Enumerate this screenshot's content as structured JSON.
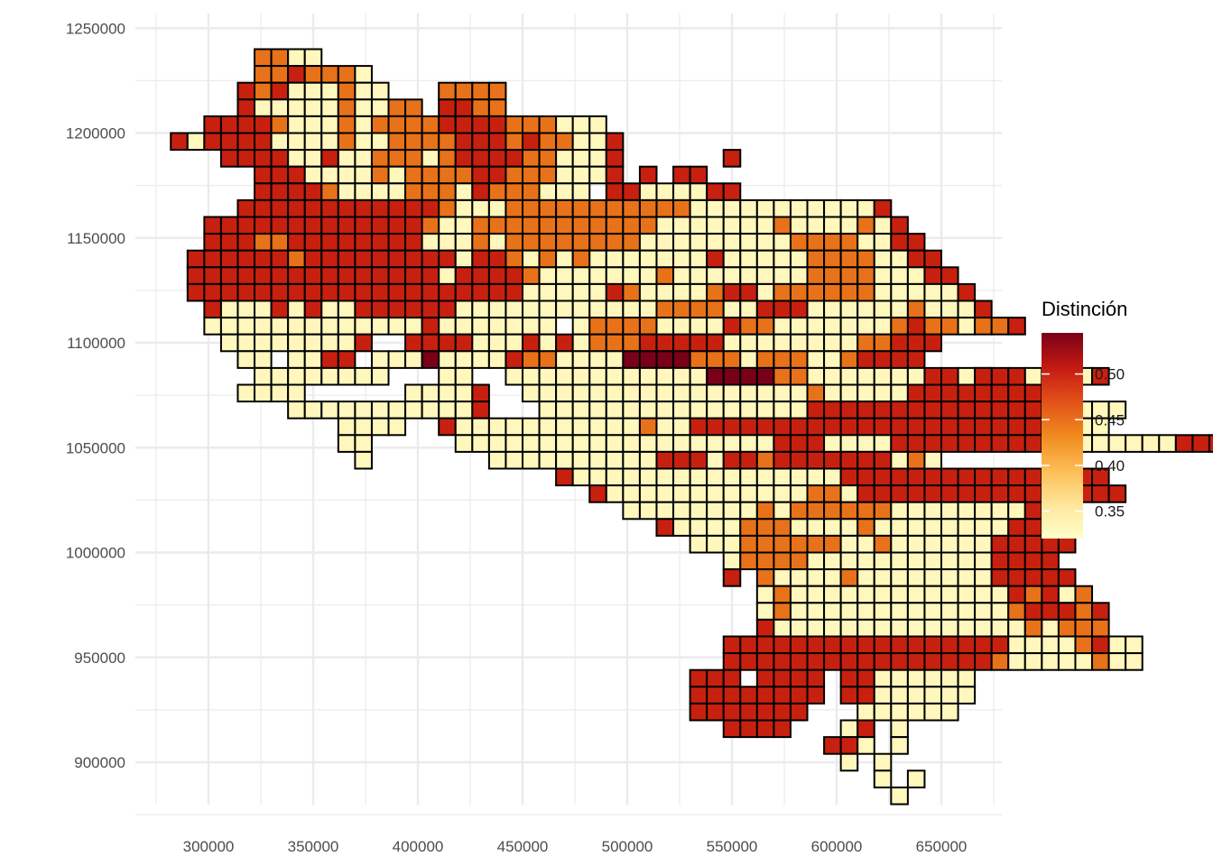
{
  "chart_data": {
    "type": "heatmap",
    "title": "",
    "xlabel": "",
    "ylabel": "",
    "x_ticks": [
      "300000",
      "350000",
      "400000",
      "450000",
      "500000",
      "550000",
      "600000",
      "650000"
    ],
    "y_ticks": [
      "900000",
      "950000",
      "1000000",
      "1050000",
      "1100000",
      "1150000",
      "1200000",
      "1250000"
    ],
    "xlim": [
      280000,
      680000
    ],
    "ylim": [
      885000,
      1252000
    ],
    "grid": true,
    "cell_size": 8000,
    "legend": {
      "title": "Distinción",
      "position": "right",
      "labels": [
        "0.35",
        "0.40",
        "0.45",
        "0.50"
      ],
      "min": 0.32,
      "max": 0.545
    },
    "colors": {
      "v1": "#fff7bc",
      "v2": "#fee7a2",
      "v3": "#e8721a",
      "v4": "#c8200e",
      "v5": "#7a0018",
      "grid": "#ebebeb",
      "cell_border": "#000000"
    },
    "color_scale": {
      "v1": 0.33,
      "v2": 0.35,
      "v3": 0.45,
      "v4": 0.5,
      "v5": 0.54
    },
    "cells": [
      {
        "y": 1236000,
        "segs": [
          [
            326000,
            4,
            "v3,v3,v1,v1"
          ]
        ]
      },
      {
        "y": 1228000,
        "segs": [
          [
            326000,
            4,
            "v3,v3,v4,v3"
          ],
          [
            350000,
            4,
            "v3,v3,v3,v1"
          ]
        ]
      },
      {
        "y": 1220000,
        "segs": [
          [
            318000,
            3,
            "v4,v3,v4"
          ],
          [
            342000,
            6,
            "v1,v1,v1,v3,v1,v1"
          ],
          [
            414000,
            4,
            "v3,v3,v3,v3"
          ]
        ]
      },
      {
        "y": 1212000,
        "segs": [
          [
            318000,
            3,
            "v4,v1,v1"
          ],
          [
            342000,
            8,
            "v1,v1,v1,v3,v1,v1,v3,v3"
          ],
          [
            414000,
            4,
            "v4,v4,v3,v3"
          ]
        ]
      },
      {
        "y": 1204000,
        "segs": [
          [
            302000,
            24,
            "v4,v4,v4,v4,v3,v1,v1,v1,v3,v1,v3,v3,v3,v3,v4,v4,v4,v4,v3,v3,v3,v1,v1,v1"
          ]
        ]
      },
      {
        "y": 1196000,
        "segs": [
          [
            286000,
            27,
            "v4,v1,v4,v4,v4,v4,v1,v1,v1,v1,v3,v1,v1,v3,v3,v3,v3,v4,v4,v4,v3,v4,v3,v3,v1,v1,v4"
          ]
        ]
      },
      {
        "y": 1188000,
        "segs": [
          [
            310000,
            24,
            "v4,v4,v4,v4,v1,v1,v4,v1,v1,v3,v3,v3,v1,v3,v4,v4,v4,v4,v3,v3,v1,v1,v1,v4"
          ],
          [
            550000,
            1,
            "v4"
          ]
        ]
      },
      {
        "y": 1180000,
        "segs": [
          [
            326000,
            22,
            "v4,v4,v4,v1,v1,v1,v1,v3,v1,v3,v3,v3,v3,v4,v4,v3,v3,v3,v1,v1,v1,v4"
          ],
          [
            510000,
            1,
            "v4"
          ],
          [
            526000,
            2,
            "v4,v4"
          ]
        ]
      },
      {
        "y": 1172000,
        "segs": [
          [
            326000,
            20,
            "v4,v4,v4,v4,v3,v1,v1,v1,v1,v3,v3,v3,v1,v4,v3,v3,v3,v1,v1,v1"
          ],
          [
            494000,
            5,
            "v4,v4,v1,v1,v1"
          ],
          [
            534000,
            3,
            "v1,v4,v4"
          ]
        ]
      },
      {
        "y": 1164000,
        "segs": [
          [
            318000,
            39,
            "v4,v4,v4,v4,v4,v4,v4,v4,v4,v4,v4,v4,v3,v1,v1,v1,v3,v3,v3,v3,v3,v3,v3,v3,v3,v3,v3,v1,v1,v1,v1,v1,v1,v1,v1,v1,v1,v1,v4"
          ]
        ]
      },
      {
        "y": 1156000,
        "segs": [
          [
            302000,
            42,
            "v4,v4,v4,v4,v4,v4,v4,v4,v4,v4,v4,v4,v4,v3,v1,v1,v3,v3,v3,v3,v3,v3,v3,v3,v3,v3,v3,v1,v1,v1,v1,v1,v1,v1,v3,v1,v1,v1,v1,v3,v1,v4"
          ]
        ]
      },
      {
        "y": 1148000,
        "segs": [
          [
            302000,
            43,
            "v4,v4,v4,v3,v3,v4,v4,v4,v4,v4,v4,v4,v4,v1,v1,v1,v3,v1,v3,v3,v3,v3,v3,v3,v3,v3,v1,v1,v1,v1,v1,v1,v1,v1,v1,v3,v3,v3,v3,v1,v1,v4,v4"
          ]
        ]
      },
      {
        "y": 1140000,
        "segs": [
          [
            294000,
            45,
            "v4,v4,v4,v4,v4,v4,v3,v4,v4,v4,v4,v4,v4,v4,v4,v4,v1,v4,v4,v3,v1,v3,v1,v3,v1,v1,v1,v1,v1,v1,v1,v4,v1,v1,v1,v1,v1,v3,v3,v3,v3,v1,v1,v4,v4"
          ]
        ]
      },
      {
        "y": 1132000,
        "segs": [
          [
            294000,
            46,
            "v4,v4,v4,v4,v4,v4,v4,v4,v4,v4,v4,v4,v4,v4,v4,v1,v4,v4,v4,v4,v3,v1,v1,v1,v1,v1,v1,v1,v3,v1,v1,v1,v1,v1,v1,v1,v1,v3,v3,v3,v3,v1,v1,v1,v4,v4"
          ]
        ]
      },
      {
        "y": 1124000,
        "segs": [
          [
            294000,
            47,
            "v4,v4,v4,v4,v4,v4,v4,v4,v4,v4,v4,v4,v4,v4,v4,v4,v4,v4,v4,v4,v1,v1,v1,v1,v1,v4,v3,v1,v1,v1,v1,v3,v4,v4,v1,v3,v3,v3,v3,v3,v3,v1,v1,v1,v1,v1,v4"
          ]
        ]
      },
      {
        "y": 1116000,
        "segs": [
          [
            302000,
            47,
            "v4,v1,v1,v1,v4,v1,v4,v1,v1,v4,v4,v4,v4,v4,v4,v1,v1,v1,v1,v1,v1,v1,v1,v1,v1,v1,v1,v3,v3,v3,v3,v1,v1,v4,v4,v4,v1,v1,v1,v1,v1,v1,v3,v1,v1,v1,v4"
          ]
        ]
      },
      {
        "y": 1108000,
        "segs": [
          [
            302000,
            21,
            "v1,v1,v1,v1,v1,v1,v1,v1,v1,v1,v1,v1,v1,v4,v1,v1,v1,v1,v1,v1,v1"
          ],
          [
            478000,
            27,
            "v1,v3,v3,v3,v3,v1,v1,v1,v1,v4,v3,v3,v1,v1,v1,v1,v1,v1,v1,v3,v4,v3,v3,v1,v3,v3,v4"
          ]
        ]
      },
      {
        "y": 1100000,
        "segs": [
          [
            310000,
            9,
            "v1,v1,v1,v1,v1,v1,v1,v1,v4"
          ],
          [
            398000,
            30,
            "v4,v4,v4,v4,v1,v1,v1,v4,v1,v4,v1,v3,v3,v3,v4,v4,v4,v4,v4,v1,v1,v1,v1,v1,v1,v1,v1,v3,v3,v4"
          ],
          [
            638000,
            2,
            "v4,v4"
          ]
        ]
      },
      {
        "y": 1092000,
        "segs": [
          [
            318000,
            2,
            "v1,v1"
          ],
          [
            342000,
            4,
            "v1,v1,v4,v4"
          ],
          [
            382000,
            31,
            "v1,v1,v1,v5,v1,v1,v1,v1,v4,v3,v3,v1,v1,v1,v1,v5,v5,v5,v5,v3,v3,v3,v1,v3,v3,v3,v1,v1,v3,v4,v4"
          ],
          [
            630000,
            2,
            "v4,v4"
          ]
        ]
      },
      {
        "y": 1084000,
        "segs": [
          [
            326000,
            8,
            "v1,v1,v1,v1,v1,v1,v1,v1"
          ],
          [
            414000,
            2,
            "v1,v1"
          ],
          [
            446000,
            36,
            "v1,v1,v1,v1,v1,v1,v1,v1,v1,v1,v1,v1,v5,v5,v5,v5,v3,v3,v1,v1,v1,v1,v1,v1,v1,v4,v4,v1,v1,v4,v4,v1,v1,v4,v1,v4"
          ],
          [
            670000,
            1,
            "v4"
          ]
        ]
      },
      {
        "y": 1076000,
        "segs": [
          [
            318000,
            4,
            "v1,v1,v1,v1"
          ],
          [
            398000,
            5,
            "v1,v1,v1,v1,v4"
          ],
          [
            454000,
            32,
            "v1,v1,v1,v1,v1,v1,v1,v1,v1,v1,v1,v1,v1,v1,v1,v1,v1,v3,v1,v1,v1,v1,v1,v4,v4,v4,v4,v4,v4,v4,v4,v1"
          ]
        ]
      },
      {
        "y": 1068000,
        "segs": [
          [
            342000,
            12,
            "v1,v1,v1,v1,v1,v1,v1,v1,v1,v1,v1,v4"
          ],
          [
            462000,
            35,
            "v1,v1,v1,v1,v1,v1,v1,v1,v1,v1,v1,v1,v1,v1,v1,v1,v4,v4,v4,v4,v4,v4,v4,v4,v4,v4,v4,v4,v4,v4,v4,v4,v1,v1,v1"
          ]
        ]
      },
      {
        "y": 1060000,
        "segs": [
          [
            366000,
            4,
            "v1,v1,v1,v1"
          ],
          [
            414000,
            40,
            "v4,v1,v1,v1,v1,v1,v1,v1,v1,v1,v1,v1,v3,v1,v1,v4,v4,v4,v4,v4,v4,v4,v4,v4,v4,v4,v4,v4,v4,v4,v4,v4,v4,v4,v4,v4,v4,v1,v1,v1"
          ]
        ]
      },
      {
        "y": 1052000,
        "segs": [
          [
            366000,
            2,
            "v1,v1"
          ],
          [
            422000,
            46,
            "v1,v1,v1,v1,v1,v1,v1,v1,v1,v1,v1,v1,v1,v1,v1,v1,v1,v1,v1,v4,v4,v4,v1,v1,v1,v1,v4,v4,v4,v4,v4,v4,v4,v4,v4,v4,v4,v1,v1,v1,v1,v1,v1,v4,v4,v4"
          ]
        ]
      },
      {
        "y": 1044000,
        "segs": [
          [
            374000,
            1,
            "v1"
          ],
          [
            438000,
            22,
            "v1,v1,v1,v1,v1,v1,v1,v1,v1,v1,v4,v4,v4,v1,v4,v4,v3,v4,v4,v4,v4,v4"
          ],
          [
            606000,
            3,
            "v4,v4,v1"
          ],
          [
            622000,
            4,
            "v4,v1,v3,v1"
          ]
        ]
      },
      {
        "y": 1036000,
        "segs": [
          [
            470000,
            33,
            "v4,v1,v1,v1,v1,v1,v1,v1,v1,v1,v1,v1,v1,v1,v1,v1,v1,v4,v4,v4,v4,v4,v4,v4,v4,v4,v4,v4,v4,v4,v4,v4,v4"
          ]
        ]
      },
      {
        "y": 1028000,
        "segs": [
          [
            486000,
            32,
            "v4,v1,v1,v1,v1,v1,v1,v1,v1,v1,v1,v1,v1,v3,v3,v1,v4,v4,v4,v4,v4,v4,v4,v4,v4,v4,v4,v4,v4,v4,v4,v4"
          ]
        ]
      },
      {
        "y": 1020000,
        "segs": [
          [
            502000,
            27,
            "v1,v1,v1,v1,v1,v1,v1,v1,v3,v1,v3,v3,v3,v3,v3,v3,v1,v1,v1,v1,v1,v1,v1,v1,v4,v4,v4"
          ]
        ]
      },
      {
        "y": 1012000,
        "segs": [
          [
            518000,
            25,
            "v4,v1,v1,v1,v1,v3,v3,v3,v1,v1,v1,v1,v3,v1,v1,v1,v1,v1,v1,v1,v1,v4,v4,v4,v4"
          ]
        ]
      },
      {
        "y": 1004000,
        "segs": [
          [
            534000,
            23,
            "v1,v1,v1,v3,v3,v3,v3,v3,v3,v1,v1,v3,v1,v1,v1,v1,v1,v1,v4,v4,v4,v4,v4"
          ]
        ]
      },
      {
        "y": 996000,
        "segs": [
          [
            550000,
            20,
            "v1,v3,v3,v3,v3,v1,v1,v1,v1,v1,v1,v1,v1,v1,v1,v1,v4,v4,v4,v4"
          ]
        ]
      },
      {
        "y": 988000,
        "segs": [
          [
            550000,
            1,
            "v4"
          ],
          [
            566000,
            19,
            "v3,v1,v1,v1,v1,v3,v1,v1,v1,v1,v1,v1,v1,v1,v4,v4,v4,v4,v4"
          ]
        ]
      },
      {
        "y": 980000,
        "segs": [
          [
            566000,
            20,
            "v1,v3,v1,v1,v1,v1,v1,v1,v1,v1,v1,v1,v1,v1,v1,v4,v3,v4,v1,v3"
          ]
        ]
      },
      {
        "y": 972000,
        "segs": [
          [
            566000,
            21,
            "v1,v3,v1,v1,v1,v1,v1,v1,v1,v1,v1,v1,v1,v1,v1,v3,v4,v4,v4,v3,v4"
          ]
        ]
      },
      {
        "y": 964000,
        "segs": [
          [
            566000,
            21,
            "v4,v1,v1,v1,v1,v1,v1,v1,v1,v1,v1,v1,v1,v1,v1,v1,v3,v1,v3,v3,v3"
          ]
        ]
      },
      {
        "y": 956000,
        "segs": [
          [
            550000,
            25,
            "v4,v4,v4,v4,v4,v4,v4,v4,v4,v4,v4,v4,v4,v4,v4,v4,v4,v1,v1,v1,v1,v3,v4,v1,v1"
          ]
        ]
      },
      {
        "y": 948000,
        "segs": [
          [
            550000,
            25,
            "v4,v4,v4,v4,v4,v4,v4,v4,v4,v4,v4,v4,v4,v4,v4,v4,v3,v1,v1,v1,v1,v1,v3,v1,v1"
          ]
        ]
      },
      {
        "y": 940000,
        "segs": [
          [
            534000,
            3,
            "v4,v4,v4"
          ],
          [
            566000,
            4,
            "v4,v4,v4,v4"
          ],
          [
            606000,
            2,
            "v4,v4"
          ],
          [
            622000,
            6,
            "v1,v1,v1,v1,v1,v1"
          ]
        ]
      },
      {
        "y": 932000,
        "segs": [
          [
            534000,
            8,
            "v4,v4,v4,v4,v4,v4,v4,v4"
          ],
          [
            606000,
            3,
            "v4,v4,v1"
          ],
          [
            630000,
            5,
            "v1,v1,v1,v1,v1"
          ]
        ]
      },
      {
        "y": 924000,
        "segs": [
          [
            534000,
            7,
            "v4,v4,v4,v4,v4,v4,v4"
          ],
          [
            614000,
            6,
            "v1,v1,v1,v1,v1,v1"
          ]
        ]
      },
      {
        "y": 916000,
        "segs": [
          [
            550000,
            4,
            "v4,v4,v4,v4"
          ],
          [
            606000,
            2,
            "v1,v4"
          ],
          [
            630000,
            1,
            "v1"
          ]
        ]
      },
      {
        "y": 908000,
        "segs": [
          [
            598000,
            2,
            "v4,v4"
          ],
          [
            614000,
            1,
            "v1"
          ],
          [
            630000,
            1,
            "v1"
          ]
        ]
      },
      {
        "y": 900000,
        "segs": [
          [
            606000,
            1,
            "v1"
          ],
          [
            622000,
            1,
            "v1"
          ]
        ]
      },
      {
        "y": 892000,
        "segs": [
          [
            622000,
            1,
            "v1"
          ],
          [
            638000,
            1,
            "v1"
          ]
        ]
      },
      {
        "y": 884000,
        "segs": [
          [
            630000,
            1,
            "v1"
          ]
        ]
      }
    ]
  }
}
